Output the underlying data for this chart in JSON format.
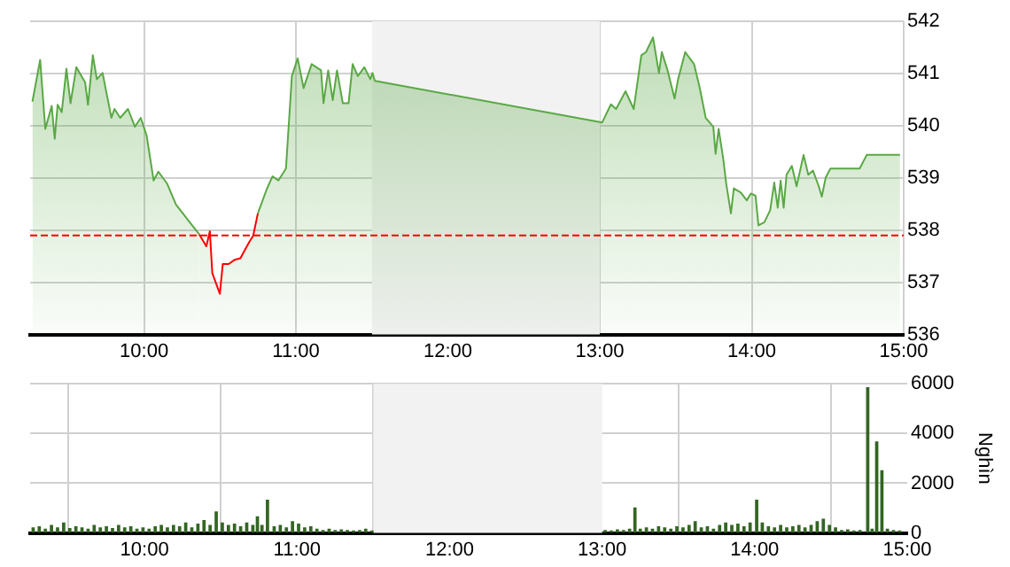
{
  "chart_data": [
    {
      "type": "area",
      "x": [
        9.265,
        9.316,
        9.35,
        9.392,
        9.412,
        9.431,
        9.458,
        9.489,
        9.516,
        9.554,
        9.612,
        9.631,
        9.663,
        9.689,
        9.727,
        9.785,
        9.805,
        9.843,
        9.894,
        9.94,
        9.978,
        10.017,
        10.063,
        10.094,
        10.152,
        10.21,
        10.287,
        10.363,
        10.41,
        10.433,
        10.449,
        10.499,
        10.518,
        10.557,
        10.595,
        10.634,
        10.692,
        10.718,
        10.749,
        10.807,
        10.845,
        10.884,
        10.934,
        10.973,
        11.011,
        11.05,
        11.103,
        11.165,
        11.181,
        11.212,
        11.242,
        11.27,
        11.308,
        11.346,
        11.373,
        11.407,
        11.45,
        11.489,
        11.504,
        11.519,
        13.015,
        13.073,
        13.107,
        13.169,
        13.223,
        13.273,
        13.304,
        13.35,
        13.389,
        13.408,
        13.446,
        13.492,
        13.515,
        13.562,
        13.62,
        13.658,
        13.697,
        13.747,
        13.762,
        13.782,
        13.813,
        13.832,
        13.863,
        13.882,
        13.928,
        13.967,
        13.994,
        14.025,
        14.044,
        14.083,
        14.121,
        14.148,
        14.171,
        14.19,
        14.21,
        14.229,
        14.264,
        14.295,
        14.341,
        14.372,
        14.403,
        14.441,
        14.461,
        14.487,
        14.518,
        14.71,
        14.757,
        14.976
      ],
      "series": [
        {
          "color": "#5aa845",
          "values": [
            540.46,
            541.26,
            539.94,
            540.38,
            539.75,
            540.4,
            540.26,
            541.09,
            540.43,
            541.12,
            540.83,
            540.4,
            541.35,
            540.89,
            541.01,
            540.15,
            540.32,
            540.15,
            540.32,
            539.98,
            540.15,
            539.81,
            538.95,
            539.12,
            538.89,
            538.49,
            538.2,
            537.92,
            537.69,
            537.98,
            537.18,
            536.78,
            537.35,
            537.35,
            537.43,
            537.46,
            537.77,
            537.89,
            538.32,
            538.78,
            539.03,
            538.95,
            539.18,
            540.95,
            541.29,
            540.72,
            541.18,
            541.06,
            540.43,
            541.06,
            540.49,
            541.06,
            540.43,
            540.43,
            541.18,
            540.95,
            541.12,
            540.89,
            541.01,
            540.86,
            540.06,
            540.41,
            540.32,
            540.66,
            540.32,
            541.35,
            541.41,
            541.69,
            541.01,
            541.41,
            541.06,
            540.52,
            540.89,
            541.41,
            541.18,
            540.72,
            540.15,
            539.98,
            539.46,
            539.94,
            539.35,
            538.89,
            538.32,
            538.8,
            538.72,
            538.57,
            538.7,
            538.66,
            538.09,
            538.15,
            538.38,
            538.91,
            538.43,
            538.95,
            538.43,
            539.06,
            539.23,
            538.84,
            539.44,
            539.06,
            539.14,
            538.84,
            538.64,
            539.01,
            539.18,
            539.18,
            539.44,
            539.44
          ]
        }
      ],
      "xlim": [
        9.25,
        15
      ],
      "xticks": [
        {
          "value": 10,
          "label": "10:00"
        },
        {
          "value": 11,
          "label": "11:00"
        },
        {
          "value": 12,
          "label": "12:00"
        },
        {
          "value": 13,
          "label": "13:00"
        },
        {
          "value": 14,
          "label": "14:00"
        },
        {
          "value": 15,
          "label": "15:00"
        }
      ],
      "ylim": [
        536,
        542
      ],
      "yticks": [
        536,
        537,
        538,
        539,
        540,
        541,
        542
      ],
      "grid": true,
      "bands": [
        {
          "axis": "x",
          "from": 11.5,
          "to": 13,
          "color": "#f2f2f2"
        }
      ],
      "ref_lines": [
        {
          "axis": "y",
          "value": 537.9,
          "color": "#ff0000",
          "line_style": "dashed"
        }
      ]
    },
    {
      "type": "bar",
      "x": [
        9.27,
        9.31,
        9.35,
        9.39,
        9.43,
        9.47,
        9.51,
        9.55,
        9.59,
        9.63,
        9.67,
        9.71,
        9.75,
        9.79,
        9.83,
        9.87,
        9.91,
        9.95,
        9.99,
        10.03,
        10.07,
        10.11,
        10.15,
        10.19,
        10.23,
        10.27,
        10.31,
        10.35,
        10.39,
        10.43,
        10.47,
        10.51,
        10.55,
        10.59,
        10.63,
        10.67,
        10.71,
        10.74,
        10.77,
        10.806,
        10.85,
        10.89,
        10.93,
        10.97,
        11.01,
        11.05,
        11.09,
        11.13,
        11.17,
        11.21,
        11.25,
        11.29,
        11.33,
        11.37,
        11.41,
        11.45,
        11.49,
        13.02,
        13.06,
        13.1,
        13.14,
        13.18,
        13.215,
        13.25,
        13.29,
        13.33,
        13.37,
        13.41,
        13.45,
        13.49,
        13.53,
        13.57,
        13.61,
        13.65,
        13.69,
        13.73,
        13.77,
        13.81,
        13.85,
        13.89,
        13.93,
        13.97,
        14.013,
        14.05,
        14.09,
        14.13,
        14.17,
        14.21,
        14.25,
        14.29,
        14.33,
        14.37,
        14.41,
        14.45,
        14.49,
        14.53,
        14.57,
        14.61,
        14.65,
        14.69,
        14.741,
        14.77,
        14.8,
        14.834,
        14.87,
        14.91,
        14.95
      ],
      "series": [
        {
          "color": "#336622",
          "values": [
            200,
            250,
            150,
            300,
            200,
            400,
            180,
            250,
            200,
            150,
            300,
            200,
            250,
            180,
            300,
            200,
            250,
            150,
            200,
            150,
            250,
            300,
            200,
            300,
            250,
            400,
            200,
            350,
            500,
            300,
            840,
            400,
            300,
            350,
            250,
            400,
            300,
            650,
            300,
            1320,
            250,
            300,
            200,
            450,
            350,
            200,
            250,
            150,
            100,
            150,
            100,
            120,
            100,
            80,
            100,
            150,
            80,
            100,
            80,
            120,
            100,
            150,
            1000,
            150,
            200,
            150,
            250,
            200,
            150,
            250,
            200,
            300,
            450,
            200,
            250,
            150,
            300,
            400,
            300,
            350,
            250,
            400,
            1320,
            400,
            250,
            200,
            300,
            200,
            250,
            300,
            200,
            300,
            450,
            550,
            300,
            200,
            100,
            120,
            80,
            100,
            5840,
            150,
            3660,
            2500,
            150,
            100,
            80
          ]
        }
      ],
      "xlim": [
        9.25,
        15
      ],
      "xticks": [
        {
          "value": 10,
          "label": "10:00"
        },
        {
          "value": 11,
          "label": "11:00"
        },
        {
          "value": 12,
          "label": "12:00"
        },
        {
          "value": 13,
          "label": "13:00"
        },
        {
          "value": 14,
          "label": "14:00"
        },
        {
          "value": 15,
          "label": "15:00"
        }
      ],
      "ylim": [
        0,
        6000
      ],
      "yticks": [
        0,
        2000,
        4000,
        6000
      ],
      "ylabel": "Nghìn",
      "grid": true,
      "bands": [
        {
          "axis": "x",
          "from": 11.5,
          "to": 13,
          "color": "#f2f2f2"
        }
      ]
    }
  ]
}
